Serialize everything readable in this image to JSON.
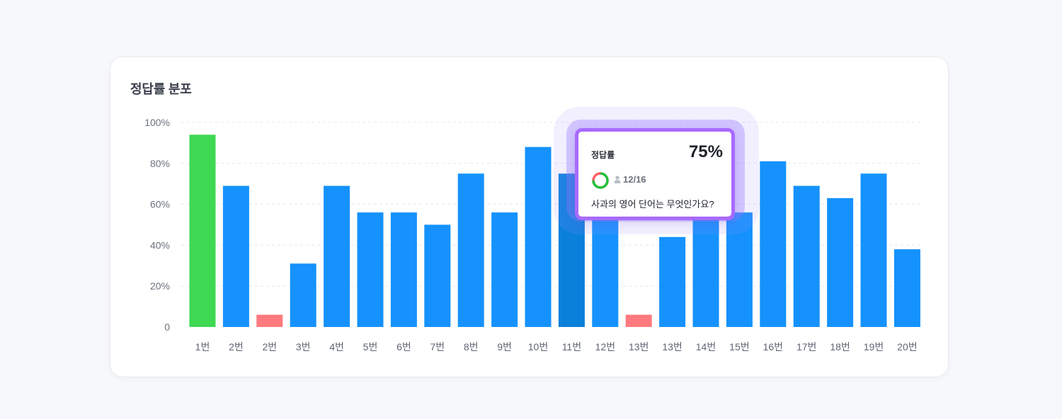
{
  "card": {
    "title": "정답률 분포"
  },
  "colors": {
    "bar_default": "#1592fd",
    "bar_active": "#0a80db",
    "bar_high": "#3fd853",
    "bar_low": "#ff7a7e",
    "grid": "#e6e8ee",
    "tooltip_border": "#a86bff",
    "ring_green": "#24c23b",
    "ring_red": "#ff6166"
  },
  "chart_data": {
    "type": "bar",
    "title": "정답률 분포",
    "ylim": [
      0,
      100
    ],
    "yticks": [
      0,
      20,
      40,
      60,
      80,
      100
    ],
    "ytick_labels": [
      "0",
      "20%",
      "40%",
      "60%",
      "80%",
      "100%"
    ],
    "grid": true,
    "categories": [
      "1번",
      "2번",
      "2번",
      "3번",
      "4번",
      "5번",
      "6번",
      "7번",
      "8번",
      "9번",
      "10번",
      "11번",
      "12번",
      "13번",
      "13번",
      "14번",
      "15번",
      "16번",
      "17번",
      "18번",
      "19번",
      "20번"
    ],
    "values": [
      94,
      69,
      6,
      31,
      69,
      56,
      56,
      50,
      75,
      56,
      88,
      75,
      56,
      6,
      44,
      56,
      56,
      81,
      69,
      63,
      75,
      38
    ],
    "highlight_index": 11
  },
  "tooltip": {
    "label": "정답률",
    "value": "75%",
    "count": "12/16",
    "question": "사과의 영어 단어는 무엇인가요?",
    "ring_fraction": 0.75,
    "user_icon": "user-icon"
  }
}
